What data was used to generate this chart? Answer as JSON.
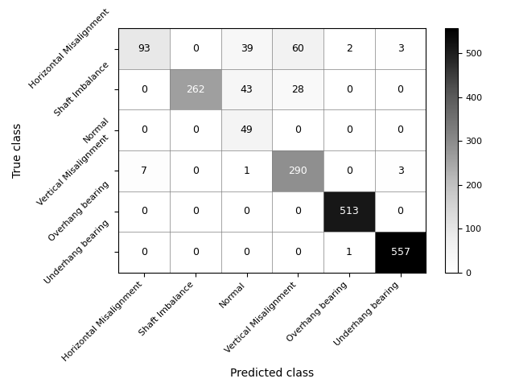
{
  "matrix": [
    [
      93,
      0,
      39,
      60,
      2,
      3
    ],
    [
      0,
      262,
      43,
      28,
      0,
      0
    ],
    [
      0,
      0,
      49,
      0,
      0,
      0
    ],
    [
      7,
      0,
      1,
      290,
      0,
      3
    ],
    [
      0,
      0,
      0,
      0,
      513,
      0
    ],
    [
      0,
      0,
      0,
      0,
      1,
      557
    ]
  ],
  "classes": [
    "Horizontal Misalignment",
    "Shaft Imbalance",
    "Normal",
    "Vertical Misalignment",
    "Overhang bearing",
    "Underhang bearing"
  ],
  "xlabel": "Predicted class",
  "ylabel": "True class",
  "cmap": "Greys",
  "vmin": 0,
  "vmax": 557,
  "colorbar_ticks": [
    0,
    100,
    200,
    300,
    400,
    500
  ],
  "text_threshold": 256,
  "figsize": [
    6.4,
    4.86
  ],
  "dpi": 100,
  "tick_fontsize": 8,
  "label_fontsize": 10,
  "annot_fontsize": 9,
  "xticklabel_rotation": 45,
  "yticklabel_rotation": 45
}
